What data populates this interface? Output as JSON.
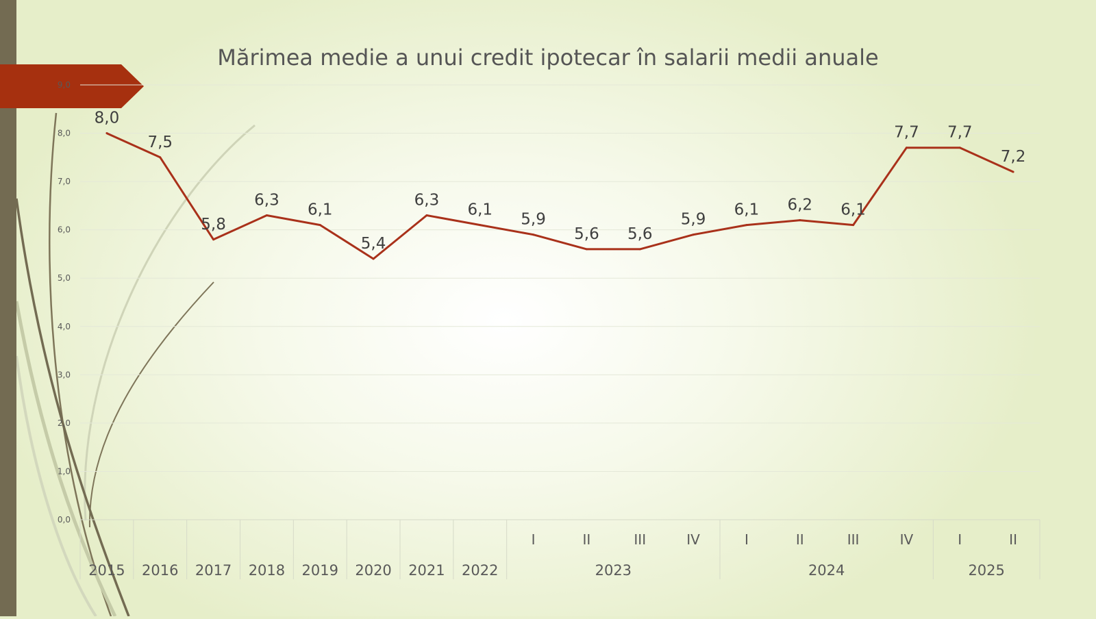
{
  "colors": {
    "line": "#a9311a",
    "accent_tab": "#a6300f",
    "side_bar": "#736b52",
    "grid": "#e4e8d8",
    "text": "#3f3f3f",
    "axis_text": "#595959"
  },
  "chart_data": {
    "type": "line",
    "title": "Mărimea medie a unui credit ipotecar în salarii medii anuale",
    "ylim": [
      0,
      9
    ],
    "y_ticks": [
      "0,0",
      "1,0",
      "2,0",
      "3,0",
      "4,0",
      "5,0",
      "6,0",
      "7,0",
      "8,0",
      "9,0"
    ],
    "grid": true,
    "legend": "none",
    "categories": [
      {
        "label": "2015",
        "group": ""
      },
      {
        "label": "2016",
        "group": ""
      },
      {
        "label": "2017",
        "group": ""
      },
      {
        "label": "2018",
        "group": ""
      },
      {
        "label": "2019",
        "group": ""
      },
      {
        "label": "2020",
        "group": ""
      },
      {
        "label": "2021",
        "group": ""
      },
      {
        "label": "2022",
        "group": ""
      },
      {
        "label": "I",
        "group": "2023"
      },
      {
        "label": "II",
        "group": "2023"
      },
      {
        "label": "III",
        "group": "2023"
      },
      {
        "label": "IV",
        "group": "2023"
      },
      {
        "label": "I",
        "group": "2024"
      },
      {
        "label": "II",
        "group": "2024"
      },
      {
        "label": "III",
        "group": "2024"
      },
      {
        "label": "IV",
        "group": "2024"
      },
      {
        "label": "I",
        "group": "2025"
      },
      {
        "label": "II",
        "group": "2025"
      }
    ],
    "series": [
      {
        "values": [
          8.0,
          7.5,
          5.8,
          6.3,
          6.1,
          5.4,
          6.3,
          6.1,
          5.9,
          5.6,
          5.6,
          5.9,
          6.1,
          6.2,
          6.1,
          7.7,
          7.7,
          7.2
        ],
        "labels": [
          "8,0",
          "7,5",
          "5,8",
          "6,3",
          "6,1",
          "5,4",
          "6,3",
          "6,1",
          "5,9",
          "5,6",
          "5,6",
          "5,9",
          "6,1",
          "6,2",
          "6,1",
          "7,7",
          "7,7",
          "7,2"
        ]
      }
    ],
    "groups": [
      "2023",
      "2024",
      "2025"
    ]
  }
}
